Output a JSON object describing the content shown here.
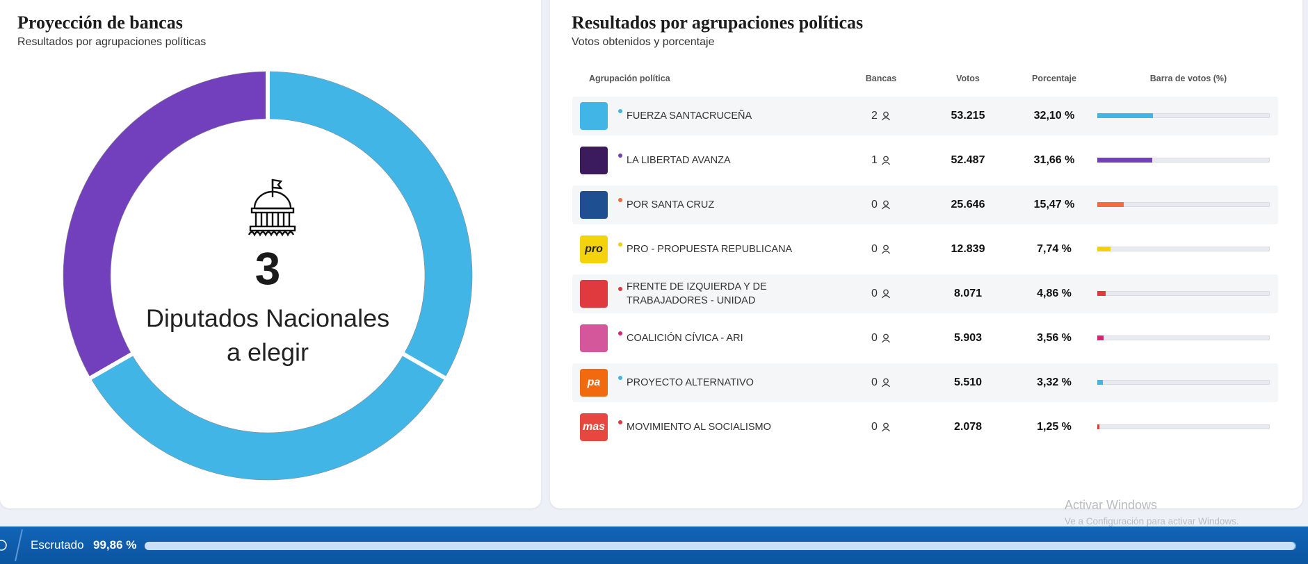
{
  "seats_panel": {
    "title": "Proyección de bancas",
    "subtitle": "Resultados por agrupaciones políticas",
    "total": 3,
    "caption_lines": [
      "Diputados Nacionales",
      "a elegir"
    ]
  },
  "results_panel": {
    "title": "Resultados por agrupaciones políticas",
    "subtitle": "Votos obtenidos y porcentaje",
    "columns": [
      "Agrupación política",
      "Bancas",
      "Votos",
      "Porcentaje",
      "Barra de votos (%)"
    ],
    "bar_range": [
      0,
      100
    ],
    "rows": [
      {
        "name": "FUERZA SANTACRUCEÑA",
        "seats": 2,
        "votes": "53.215",
        "percentage": {
          "value": 32.1,
          "label": "32,10 %"
        },
        "color": "#41b6e6",
        "logo_color": "#41b6e6"
      },
      {
        "name": "LA LIBERTAD AVANZA",
        "seats": 1,
        "votes": "52.487",
        "percentage": {
          "value": 31.66,
          "label": "31,66 %"
        },
        "color": "#7340bd",
        "logo_color": "#3b1a5e"
      },
      {
        "name": "POR SANTA CRUZ",
        "seats": 0,
        "votes": "25.646",
        "percentage": {
          "value": 15.47,
          "label": "15,47 %"
        },
        "color": "#f26d3d",
        "logo_color": "#1d4f91"
      },
      {
        "name": "PRO - PROPUESTA REPUBLICANA",
        "seats": 0,
        "votes": "12.839",
        "percentage": {
          "value": 7.74,
          "label": "7,74 %"
        },
        "color": "#f4cf0d",
        "logo_color": "#f4d30d",
        "logo_text": "pro"
      },
      {
        "name": "FRENTE DE IZQUIERDA Y DE TRABAJADORES - UNIDAD",
        "seats": 0,
        "votes": "8.071",
        "percentage": {
          "value": 4.86,
          "label": "4,86 %"
        },
        "color": "#e03a3e",
        "logo_color": "#e03a3e"
      },
      {
        "name": "COALICIÓN CÍVICA - ARI",
        "seats": 0,
        "votes": "5.903",
        "percentage": {
          "value": 3.56,
          "label": "3,56 %"
        },
        "color": "#d6246e",
        "logo_color": "#d4569b"
      },
      {
        "name": "PROYECTO ALTERNATIVO",
        "seats": 0,
        "votes": "5.510",
        "percentage": {
          "value": 3.32,
          "label": "3,32 %"
        },
        "color": "#41b6e6",
        "logo_color": "#f26a10",
        "logo_text": "pa"
      },
      {
        "name": "MOVIMIENTO AL SOCIALISMO",
        "seats": 0,
        "votes": "2.078",
        "percentage": {
          "value": 1.25,
          "label": "1,25 %"
        },
        "color": "#e03a3e",
        "logo_color": "#e8473f",
        "logo_text": "mas"
      }
    ]
  },
  "status_bar": {
    "label": "Escrutado",
    "progress": {
      "value": 99.86,
      "label": "99,86 %"
    },
    "progress_range": [
      0,
      100
    ]
  },
  "watermark": {
    "title": "Activar Windows",
    "subtitle": "Ve a Configuración para activar Windows."
  }
}
